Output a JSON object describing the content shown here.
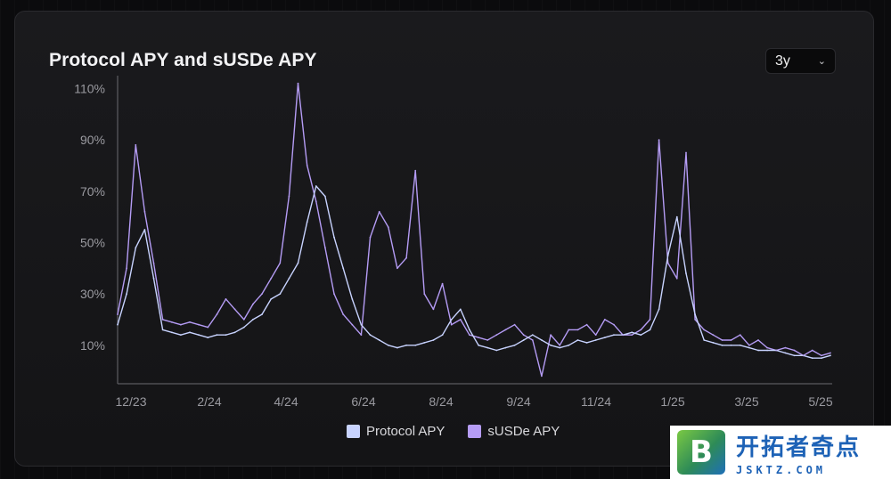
{
  "chart_data": {
    "type": "line",
    "title": "Protocol APY and sUSDe APY",
    "xlabel": "",
    "ylabel": "",
    "x_tick_labels": [
      "12/23",
      "2/24",
      "4/24",
      "6/24",
      "8/24",
      "9/24",
      "11/24",
      "1/25",
      "3/25",
      "5/25"
    ],
    "y_tick_labels": [
      "10%",
      "30%",
      "50%",
      "70%",
      "90%",
      "110%"
    ],
    "y_ticks": [
      10,
      30,
      50,
      70,
      90,
      110
    ],
    "ylim": [
      -5,
      115
    ],
    "x_index_range": [
      0,
      79
    ],
    "grid": false,
    "legend_placement": "bottom-center",
    "series": [
      {
        "name": "Protocol APY",
        "color": "#c8d3ff",
        "values": [
          18,
          30,
          48,
          55,
          36,
          16,
          15,
          14,
          15,
          14,
          13,
          14,
          14,
          15,
          17,
          20,
          22,
          28,
          30,
          36,
          42,
          58,
          72,
          68,
          52,
          40,
          28,
          18,
          14,
          12,
          10,
          9,
          10,
          10,
          11,
          12,
          14,
          20,
          24,
          16,
          10,
          9,
          8,
          9,
          10,
          12,
          14,
          12,
          10,
          9,
          10,
          12,
          11,
          12,
          13,
          14,
          14,
          15,
          14,
          16,
          24,
          45,
          60,
          38,
          22,
          12,
          11,
          10,
          10,
          10,
          9,
          8,
          8,
          8,
          7,
          6,
          6,
          5,
          5,
          6
        ]
      },
      {
        "name": "sUSDe APY",
        "color": "#b59cf5",
        "values": [
          22,
          40,
          88,
          62,
          42,
          20,
          19,
          18,
          19,
          18,
          17,
          22,
          28,
          24,
          20,
          26,
          30,
          36,
          42,
          68,
          112,
          80,
          66,
          48,
          30,
          22,
          18,
          14,
          52,
          62,
          56,
          40,
          44,
          78,
          30,
          24,
          34,
          18,
          20,
          14,
          13,
          12,
          14,
          16,
          18,
          14,
          12,
          -2,
          14,
          10,
          16,
          16,
          18,
          14,
          20,
          18,
          14,
          14,
          16,
          20,
          90,
          42,
          36,
          85,
          20,
          16,
          14,
          12,
          12,
          14,
          10,
          12,
          9,
          8,
          9,
          8,
          6,
          8,
          6,
          7
        ]
      }
    ]
  },
  "controls": {
    "range_value": "3y",
    "range_icon": "chevron-down-icon"
  },
  "watermark": {
    "logo_letter": "B",
    "main_text": "开拓者奇点",
    "sub_text": "JSKTZ.COM"
  }
}
